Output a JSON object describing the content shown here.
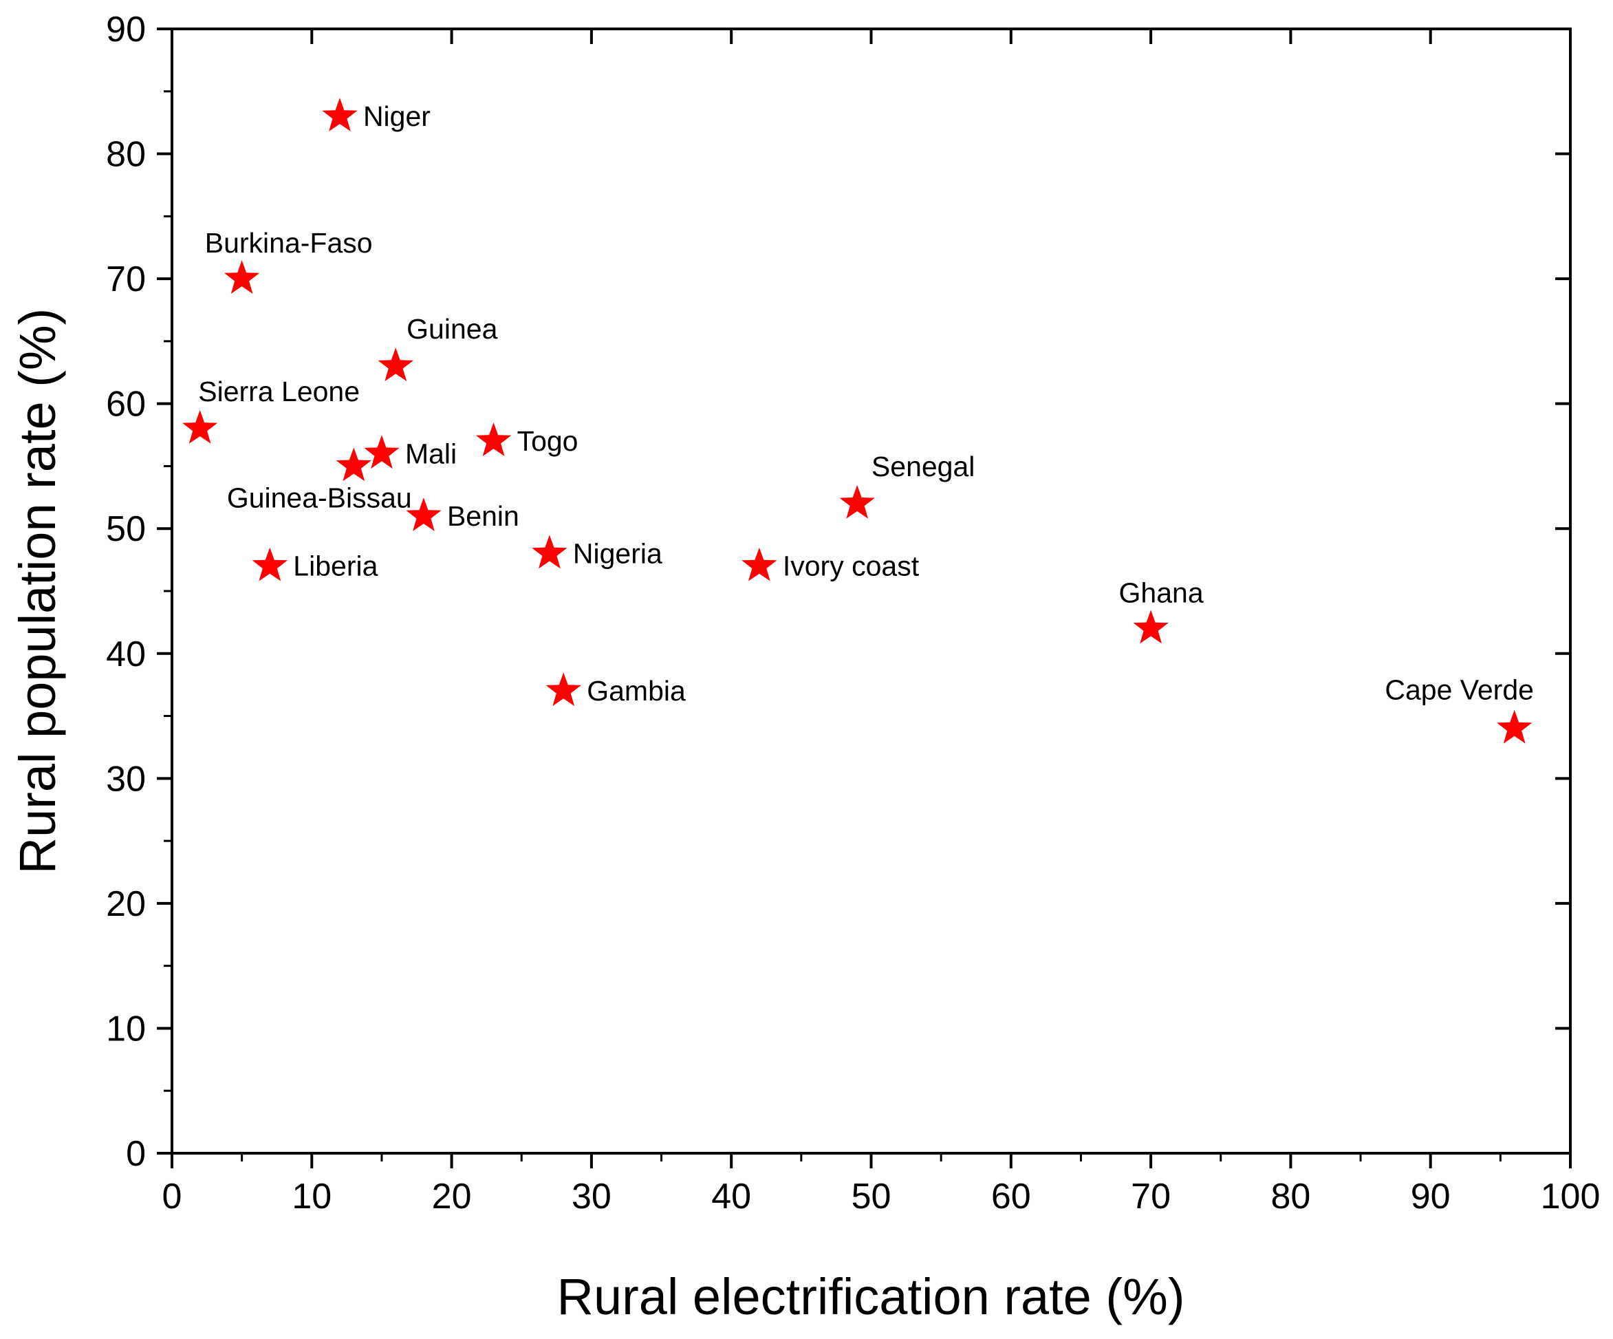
{
  "chart_data": {
    "type": "scatter",
    "title": "",
    "xlabel": "Rural electrification rate (%)",
    "ylabel": "Rural population rate (%)",
    "xlim": [
      0,
      100
    ],
    "ylim": [
      0,
      90
    ],
    "xticks": [
      "0",
      "10",
      "20",
      "30",
      "40",
      "50",
      "60",
      "70",
      "80",
      "90",
      "100"
    ],
    "yticks": [
      "0",
      "10",
      "20",
      "30",
      "40",
      "50",
      "60",
      "70",
      "80",
      "90"
    ],
    "grid": false,
    "marker": "star",
    "marker_color": "#ff0000",
    "points": [
      {
        "label": "Niger",
        "x": 12,
        "y": 83,
        "label_pos": "right"
      },
      {
        "label": "Burkina-Faso",
        "x": 5,
        "y": 70,
        "label_pos": "above"
      },
      {
        "label": "Guinea",
        "x": 16,
        "y": 63,
        "label_pos": "above-right"
      },
      {
        "label": "Sierra Leone",
        "x": 2,
        "y": 58,
        "label_pos": "above-right"
      },
      {
        "label": "Mali",
        "x": 15,
        "y": 56,
        "label_pos": "right"
      },
      {
        "label": "Togo",
        "x": 23,
        "y": 57,
        "label_pos": "right"
      },
      {
        "label": "Guinea-Bissau",
        "x": 13,
        "y": 55,
        "label_pos": "below-left"
      },
      {
        "label": "Benin",
        "x": 18,
        "y": 51,
        "label_pos": "right"
      },
      {
        "label": "Senegal",
        "x": 49,
        "y": 52,
        "label_pos": "above-right"
      },
      {
        "label": "Liberia",
        "x": 7,
        "y": 47,
        "label_pos": "right"
      },
      {
        "label": "Nigeria",
        "x": 27,
        "y": 48,
        "label_pos": "right"
      },
      {
        "label": "Ivory coast",
        "x": 42,
        "y": 47,
        "label_pos": "right"
      },
      {
        "label": "Ghana",
        "x": 70,
        "y": 42,
        "label_pos": "above"
      },
      {
        "label": "Gambia",
        "x": 28,
        "y": 37,
        "label_pos": "right"
      },
      {
        "label": "Cape Verde",
        "x": 96,
        "y": 34,
        "label_pos": "above-left"
      }
    ]
  }
}
